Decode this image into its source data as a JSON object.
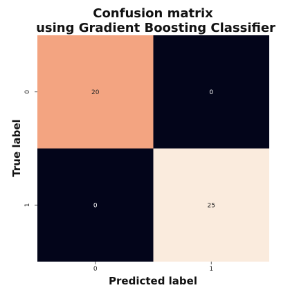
{
  "chart_data": {
    "type": "heatmap",
    "title_lines": [
      "Confusion matrix",
      "using Gradient Boosting Classifier"
    ],
    "xlabel": "Predicted label",
    "ylabel": "True label",
    "x_ticks": [
      "0",
      "1"
    ],
    "y_ticks": [
      "0",
      "1"
    ],
    "matrix": [
      [
        20,
        0
      ],
      [
        0,
        25
      ]
    ],
    "cell_labels": [
      [
        "20",
        "0"
      ],
      [
        "0",
        "25"
      ]
    ],
    "colorbar": false,
    "colors": {
      "low": "#03051a",
      "mid": "#f3a481",
      "high": "#faebdd"
    }
  }
}
